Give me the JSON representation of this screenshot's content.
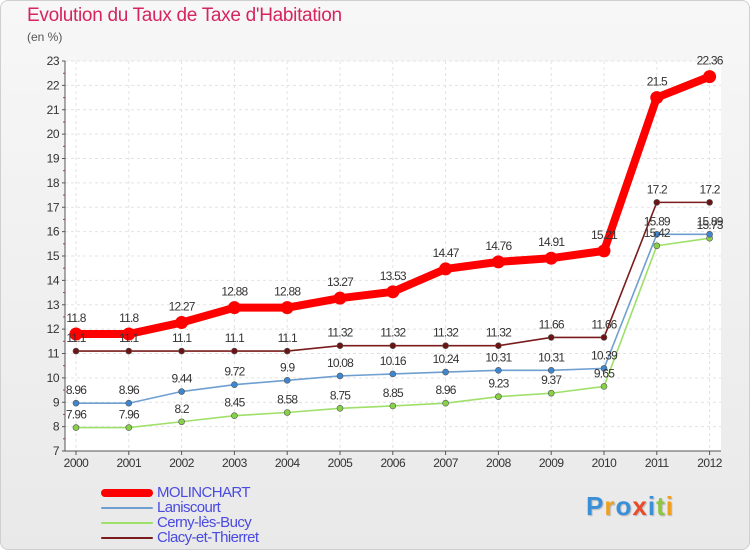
{
  "chart_data": {
    "type": "line",
    "title": "Evolution du Taux de Taxe d'Habitation",
    "subtitle": "(en %)",
    "x": [
      "2000",
      "2001",
      "2002",
      "2003",
      "2004",
      "2005",
      "2006",
      "2007",
      "2008",
      "2009",
      "2010",
      "2011",
      "2012"
    ],
    "ylim": [
      7,
      23
    ],
    "yticks": [
      "7",
      "8",
      "9",
      "10",
      "11",
      "12",
      "13",
      "14",
      "15",
      "16",
      "17",
      "18",
      "19",
      "20",
      "21",
      "22",
      "23"
    ],
    "grid": true,
    "legend_position": "bottom-left",
    "series": [
      {
        "name": "Clacy-et-Thierret",
        "color": "#7a1c1c",
        "point_color": "#6a1414",
        "values": [
          11.1,
          11.1,
          11.1,
          11.1,
          11.1,
          11.32,
          11.32,
          11.32,
          11.32,
          11.66,
          11.66,
          17.2,
          17.2
        ],
        "labels": [
          "11.1",
          "11.1",
          "11.1",
          "11.1",
          "11.1",
          "11.32",
          "11.32",
          "11.32",
          "11.32",
          "11.66",
          "11.66",
          "17.2",
          "17.2"
        ]
      },
      {
        "name": "Cerny-lès-Bucy",
        "color": "#9ee06a",
        "point_color": "#86d146",
        "values": [
          7.96,
          7.96,
          8.2,
          8.45,
          8.58,
          8.75,
          8.85,
          8.96,
          9.23,
          9.37,
          9.65,
          15.42,
          15.73
        ],
        "labels": [
          "7.96",
          "7.96",
          "8.2",
          "8.45",
          "8.58",
          "8.75",
          "8.85",
          "8.96",
          "9.23",
          "9.37",
          "9.65",
          "15.42",
          "15.73"
        ]
      },
      {
        "name": "Laniscourt",
        "color": "#6f9fd0",
        "point_color": "#3f86d0",
        "values": [
          8.96,
          8.96,
          9.44,
          9.72,
          9.9,
          10.08,
          10.16,
          10.24,
          10.31,
          10.31,
          10.39,
          15.89,
          15.89
        ],
        "labels": [
          "8.96",
          "8.96",
          "9.44",
          "9.72",
          "9.9",
          "10.08",
          "10.16",
          "10.24",
          "10.31",
          "10.31",
          "10.39",
          "15.89",
          "15.89"
        ]
      },
      {
        "name": "MOLINCHART",
        "color": "#ff0000",
        "point_color": "#ff0000",
        "values": [
          11.8,
          11.8,
          12.27,
          12.88,
          12.88,
          13.27,
          13.53,
          14.47,
          14.76,
          14.91,
          15.21,
          21.5,
          22.36
        ],
        "labels": [
          "11.8",
          "11.8",
          "12.27",
          "12.88",
          "12.88",
          "13.27",
          "13.53",
          "14.47",
          "14.76",
          "14.91",
          "15.21",
          "21.5",
          "22.36"
        ]
      }
    ],
    "legend": [
      {
        "name": "MOLINCHART",
        "color": "#ff0000",
        "text_color": "#4a4ae0"
      },
      {
        "name": "Laniscourt",
        "color": "#6f9fd0",
        "text_color": "#4a4ae0"
      },
      {
        "name": "Cerny-lès-Bucy",
        "color": "#9ee06a",
        "text_color": "#4a4ae0"
      },
      {
        "name": "Clacy-et-Thierret",
        "color": "#7a1c1c",
        "text_color": "#4a4ae0"
      }
    ]
  },
  "logo": {
    "text": "Proxiti",
    "letters": [
      {
        "ch": "P",
        "color": "#3a8fd9"
      },
      {
        "ch": "r",
        "color": "#f0a020"
      },
      {
        "ch": "o",
        "color": "#3a8fd9"
      },
      {
        "ch": "x",
        "color": "#e84a2a"
      },
      {
        "ch": "i",
        "color": "#3a8fd9"
      },
      {
        "ch": "t",
        "color": "#8cc63e"
      },
      {
        "ch": "i",
        "color": "#f0a020"
      }
    ]
  }
}
